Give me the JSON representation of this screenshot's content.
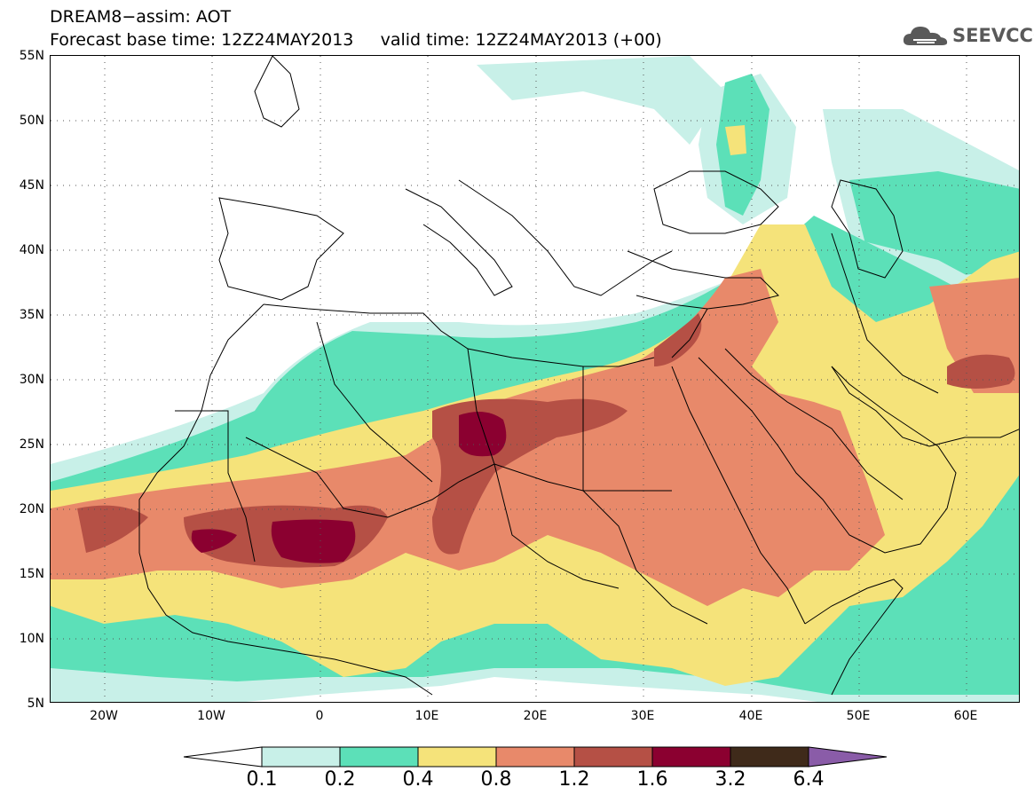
{
  "header": {
    "title_line1": "DREAM8−assim: AOT",
    "title_line2": "Forecast base time: 12Z24MAY2013     valid time: 12Z24MAY2013 (+00)"
  },
  "logo": {
    "text": "SEEVCCC",
    "icon": "cloud-icon"
  },
  "map": {
    "projection": "lat-lon",
    "lon_range": [
      -25,
      65
    ],
    "lat_range": [
      5,
      55
    ],
    "grid": "dotted",
    "lat_labels": [
      "55N",
      "50N",
      "45N",
      "40N",
      "35N",
      "30N",
      "25N",
      "20N",
      "15N",
      "10N",
      "5N"
    ],
    "lon_labels": [
      "20W",
      "10W",
      "0",
      "10E",
      "20E",
      "30E",
      "40E",
      "50E",
      "60E"
    ]
  },
  "colorbar": {
    "levels": [
      "0.1",
      "0.2",
      "0.4",
      "0.8",
      "1.2",
      "1.6",
      "3.2",
      "6.4"
    ],
    "colors": [
      "#ffffff",
      "#c8f0e8",
      "#5ce0b8",
      "#f5e37a",
      "#e8896a",
      "#b55045",
      "#8b0030",
      "#3f2a1a",
      "#8a5ca8"
    ]
  }
}
